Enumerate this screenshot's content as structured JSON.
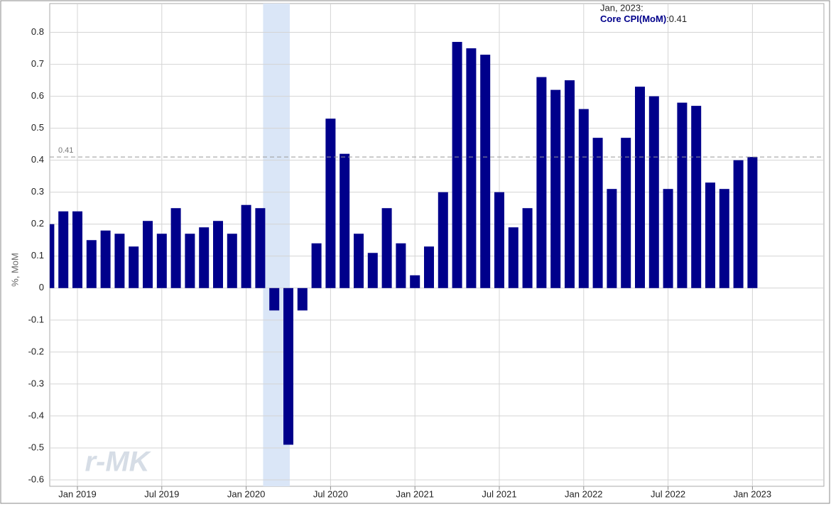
{
  "chart_data": {
    "type": "bar",
    "y_label": "%, MoM",
    "watermark": "r-MK",
    "categories": [
      null,
      null,
      "Jan 2019",
      null,
      null,
      null,
      null,
      null,
      "Jul 2019",
      null,
      null,
      null,
      null,
      null,
      "Jan 2020",
      null,
      null,
      null,
      null,
      null,
      "Jul 2020",
      null,
      null,
      null,
      null,
      null,
      "Jan 2021",
      null,
      null,
      null,
      null,
      null,
      "Jul 2021",
      null,
      null,
      null,
      null,
      null,
      "Jan 2022",
      null,
      null,
      null,
      null,
      null,
      "Jul 2022",
      null,
      null,
      null,
      null,
      null,
      "Jan 2023"
    ],
    "series": [
      {
        "name": "Core CPI(MoM)",
        "color": "#00008b",
        "values": [
          0.2,
          0.24,
          0.24,
          0.15,
          0.18,
          0.17,
          0.13,
          0.21,
          0.17,
          0.25,
          0.17,
          0.19,
          0.21,
          0.17,
          0.26,
          0.25,
          -0.07,
          -0.49,
          -0.07,
          0.14,
          0.53,
          0.42,
          0.17,
          0.11,
          0.25,
          0.14,
          0.04,
          0.13,
          0.3,
          0.77,
          0.75,
          0.73,
          0.3,
          0.19,
          0.25,
          0.66,
          0.62,
          0.65,
          0.56,
          0.47,
          0.31,
          0.47,
          0.63,
          0.6,
          0.31,
          0.58,
          0.57,
          0.33,
          0.31,
          0.4,
          0.41
        ]
      }
    ],
    "ylim": [
      -0.62,
      0.89
    ],
    "yticks": [
      -0.6,
      -0.5,
      -0.4,
      -0.3,
      -0.2,
      -0.1,
      0,
      0.1,
      0.2,
      0.3,
      0.4,
      0.5,
      0.6,
      0.7,
      0.8
    ],
    "grid": true,
    "shaded_range": [
      15,
      17
    ],
    "reference_line": {
      "value": 0.41
    },
    "tooltip": {
      "title": "Jan, 2023:",
      "separator": ":"
    }
  }
}
